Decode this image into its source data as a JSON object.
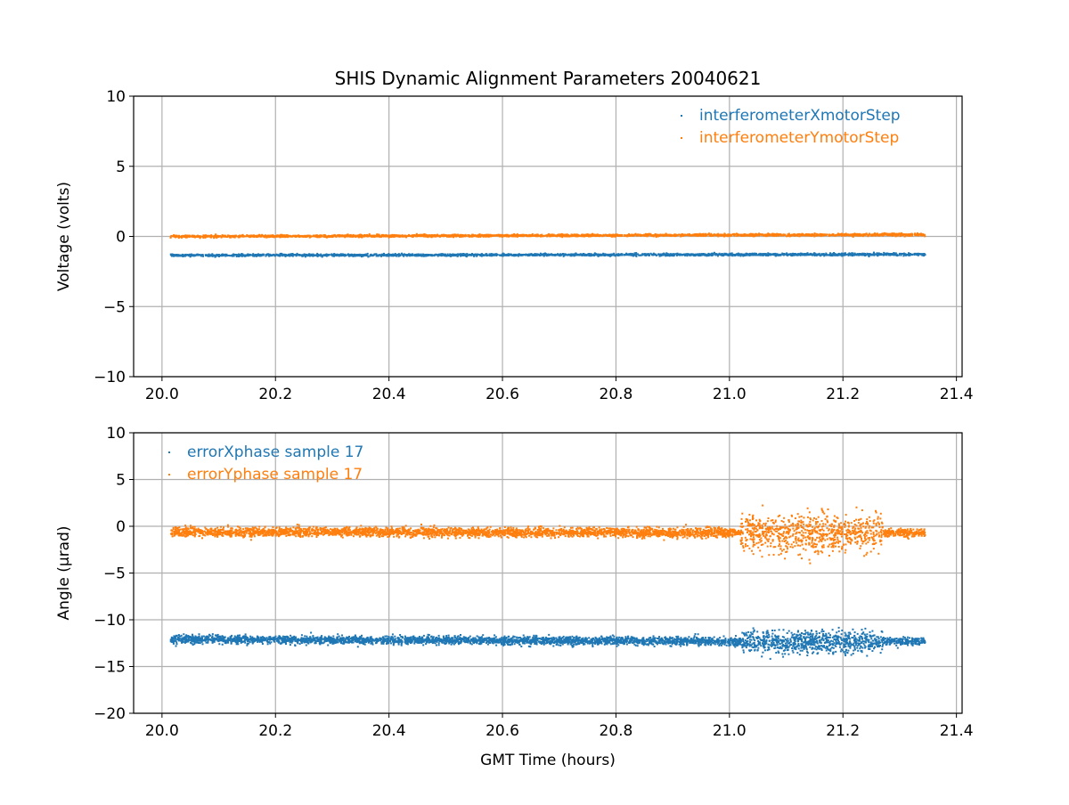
{
  "chart_data": {
    "type": "scatter",
    "title": "SHIS Dynamic Alignment Parameters 20040621",
    "colors": {
      "blue": "#1f77b4",
      "orange": "#ff7f0e",
      "grid": "#b0b0b0"
    },
    "panels": [
      {
        "ylabel": "Voltage (volts)",
        "xlabel": "",
        "xlim": [
          19.95,
          21.41
        ],
        "ylim": [
          -10,
          10
        ],
        "xticks": [
          20.0,
          20.2,
          20.4,
          20.6,
          20.8,
          21.0,
          21.2,
          21.4
        ],
        "xtick_labels": [
          "20.0",
          "20.2",
          "20.4",
          "20.6",
          "20.8",
          "21.0",
          "21.2",
          "21.4"
        ],
        "yticks": [
          -10,
          -5,
          0,
          5,
          10
        ],
        "ytick_labels": [
          "−10",
          "−5",
          "0",
          "5",
          "10"
        ],
        "grid": true,
        "legend_position": "top-right",
        "series": [
          {
            "name": "interferometerXmotorStep",
            "color": "#1f77b4",
            "n": 2500,
            "segments": [
              {
                "x": [
                  20.015,
                  21.345
                ],
                "mean": [
                  -1.35,
                  -1.28
                ],
                "sd": 0.04
              }
            ]
          },
          {
            "name": "interferometerYmotorStep",
            "color": "#ff7f0e",
            "n": 2500,
            "segments": [
              {
                "x": [
                  20.015,
                  21.345
                ],
                "mean": [
                  0.0,
                  0.13
                ],
                "sd": 0.04
              }
            ]
          }
        ]
      },
      {
        "ylabel": "Angle (μrad)",
        "xlabel": "GMT Time (hours)",
        "xlim": [
          19.95,
          21.41
        ],
        "ylim": [
          -20,
          10
        ],
        "xticks": [
          20.0,
          20.2,
          20.4,
          20.6,
          20.8,
          21.0,
          21.2,
          21.4
        ],
        "xtick_labels": [
          "20.0",
          "20.2",
          "20.4",
          "20.6",
          "20.8",
          "21.0",
          "21.2",
          "21.4"
        ],
        "yticks": [
          -20,
          -15,
          -10,
          -5,
          0,
          5,
          10
        ],
        "ytick_labels": [
          "−20",
          "−15",
          "−10",
          "−5",
          "0",
          "5",
          "10"
        ],
        "grid": true,
        "legend_position": "top-left",
        "series": [
          {
            "name": "errorXphase sample 17",
            "color": "#1f77b4",
            "n": 4000,
            "segments": [
              {
                "x": [
                  20.015,
                  21.02
                ],
                "mean": [
                  -12.1,
                  -12.3
                ],
                "sd": 0.22,
                "weight": 0.75
              },
              {
                "x": [
                  21.02,
                  21.27
                ],
                "mean": [
                  -12.4,
                  -12.3
                ],
                "sd": 0.6,
                "weight": 0.2
              },
              {
                "x": [
                  21.27,
                  21.345
                ],
                "mean": [
                  -12.3,
                  -12.3
                ],
                "sd": 0.2,
                "weight": 0.05
              }
            ]
          },
          {
            "name": "errorYphase sample 17",
            "color": "#ff7f0e",
            "n": 4000,
            "segments": [
              {
                "x": [
                  20.015,
                  21.02
                ],
                "mean": [
                  -0.6,
                  -0.7
                ],
                "sd": 0.25,
                "weight": 0.75
              },
              {
                "x": [
                  21.02,
                  21.27
                ],
                "mean": [
                  -0.7,
                  -0.7
                ],
                "sd": 1.0,
                "weight": 0.2
              },
              {
                "x": [
                  21.27,
                  21.345
                ],
                "mean": [
                  -0.7,
                  -0.7
                ],
                "sd": 0.22,
                "weight": 0.05
              }
            ]
          }
        ]
      }
    ]
  }
}
